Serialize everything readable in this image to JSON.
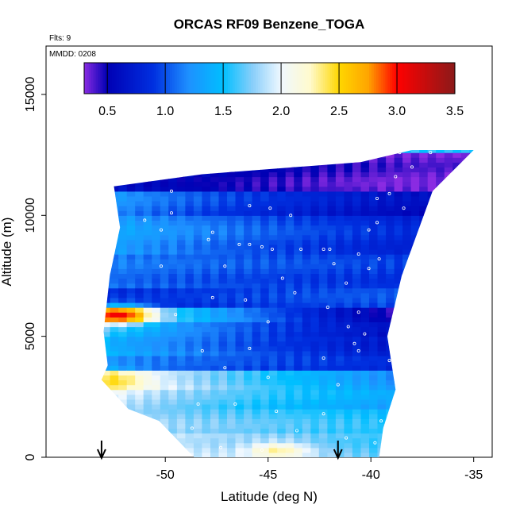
{
  "chart_data": {
    "type": "heatmap",
    "title": "ORCAS RF09 Benzene_TOGA",
    "flights_label": "Flts: 9",
    "date_label": "MMDD: 0208",
    "xlabel": "Latitude (deg N)",
    "ylabel": "Altitude (m)",
    "xlim": [
      -55.8,
      -34.1
    ],
    "ylim": [
      0,
      17000
    ],
    "x_ticks": [
      -50,
      -45,
      -40,
      -35
    ],
    "x_tick_labels": [
      "-50",
      "-45",
      "-40",
      "-35"
    ],
    "y_ticks": [
      0,
      5000,
      10000,
      15000
    ],
    "y_tick_labels": [
      "0",
      "5000",
      "10000",
      "15000"
    ],
    "colorbar": {
      "range": [
        0.3,
        3.5
      ],
      "ticks": [
        0.5,
        1.0,
        1.5,
        2.0,
        2.5,
        3.0,
        3.5
      ],
      "tick_labels": [
        "0.5",
        "1.0",
        "1.5",
        "2.0",
        "2.5",
        "3.0",
        "3.5"
      ],
      "stops": [
        {
          "value": 0.3,
          "color": "#8a2be2"
        },
        {
          "value": 0.5,
          "color": "#0000b4"
        },
        {
          "value": 0.9,
          "color": "#0030e0"
        },
        {
          "value": 1.2,
          "color": "#1e90ff"
        },
        {
          "value": 1.5,
          "color": "#00bfff"
        },
        {
          "value": 1.75,
          "color": "#87cefa"
        },
        {
          "value": 2.0,
          "color": "#f0f8ff"
        },
        {
          "value": 2.25,
          "color": "#fffacd"
        },
        {
          "value": 2.5,
          "color": "#ffd700"
        },
        {
          "value": 2.75,
          "color": "#ffa500"
        },
        {
          "value": 3.0,
          "color": "#ff0000"
        },
        {
          "value": 3.5,
          "color": "#8b1a1a"
        }
      ]
    },
    "domain_outline": [
      [
        -52.5,
        11200
      ],
      [
        -48.2,
        11700
      ],
      [
        -40.5,
        12200
      ],
      [
        -38.0,
        12700
      ],
      [
        -35.0,
        12700
      ],
      [
        -37.0,
        11000
      ],
      [
        -38.5,
        7500
      ],
      [
        -39.2,
        5000
      ],
      [
        -38.8,
        2800
      ],
      [
        -39.4,
        1200
      ],
      [
        -39.6,
        0
      ],
      [
        -48.6,
        0
      ],
      [
        -50.3,
        1500
      ],
      [
        -51.8,
        2000
      ],
      [
        -53.1,
        3200
      ],
      [
        -52.8,
        3800
      ],
      [
        -53.0,
        5200
      ],
      [
        -52.7,
        7500
      ],
      [
        -52.2,
        9500
      ],
      [
        -52.5,
        11200
      ]
    ],
    "layers": [
      {
        "alt_min": 11000,
        "alt_max": 12700,
        "west_value": 0.7,
        "east_value": 0.35
      },
      {
        "alt_min": 10000,
        "alt_max": 11000,
        "west_value": 1.3,
        "east_value": 0.6
      },
      {
        "alt_min": 8500,
        "alt_max": 10000,
        "west_value": 1.4,
        "east_value": 0.8
      },
      {
        "alt_min": 7000,
        "alt_max": 8500,
        "west_value": 1.15,
        "east_value": 0.9
      },
      {
        "alt_min": 6200,
        "alt_max": 7000,
        "west_value": 0.8,
        "east_value": 1.0
      },
      {
        "alt_min": 5700,
        "alt_max": 6200,
        "west_value": 2.3,
        "east_value": 0.4
      },
      {
        "alt_min": 5000,
        "alt_max": 5700,
        "west_value": 1.6,
        "east_value": 0.55
      },
      {
        "alt_min": 4300,
        "alt_max": 5000,
        "west_value": 1.5,
        "east_value": 0.7
      },
      {
        "alt_min": 3700,
        "alt_max": 4300,
        "west_value": 1.2,
        "east_value": 0.8
      },
      {
        "alt_min": 2900,
        "alt_max": 3700,
        "west_value": 2.3,
        "east_value": 1.2
      },
      {
        "alt_min": 2000,
        "alt_max": 2900,
        "west_value": 2.0,
        "east_value": 1.3
      },
      {
        "alt_min": 1000,
        "alt_max": 2000,
        "west_value": 1.9,
        "east_value": 1.5
      },
      {
        "alt_min": 0,
        "alt_max": 1000,
        "west_value": 2.1,
        "east_value": 1.6
      }
    ],
    "hotspots": [
      {
        "lat": -52.3,
        "alt": 5900,
        "value": 3.1
      },
      {
        "lat": -52.6,
        "alt": 3200,
        "value": 2.5
      },
      {
        "lat": -44.5,
        "alt": 300,
        "value": 2.3
      }
    ],
    "sample_points": [
      [
        -51.1,
        11500
      ],
      [
        -49.7,
        11000
      ],
      [
        -45.9,
        10400
      ],
      [
        -44.9,
        10300
      ],
      [
        -43.9,
        10000
      ],
      [
        -49.7,
        10100
      ],
      [
        -51.0,
        9800
      ],
      [
        -50.2,
        9400
      ],
      [
        -47.7,
        9300
      ],
      [
        -47.9,
        9000
      ],
      [
        -46.4,
        8800
      ],
      [
        -45.9,
        8800
      ],
      [
        -45.3,
        8700
      ],
      [
        -44.8,
        8600
      ],
      [
        -43.4,
        8600
      ],
      [
        -42.3,
        8600
      ],
      [
        -42.0,
        8600
      ],
      [
        -40.6,
        8400
      ],
      [
        -39.6,
        8200
      ],
      [
        -41.8,
        8000
      ],
      [
        -40.1,
        7800
      ],
      [
        -47.1,
        7900
      ],
      [
        -50.2,
        7900
      ],
      [
        -44.3,
        7400
      ],
      [
        -41.2,
        7200
      ],
      [
        -43.7,
        6800
      ],
      [
        -47.7,
        6600
      ],
      [
        -46.1,
        6500
      ],
      [
        -42.1,
        6200
      ],
      [
        -40.6,
        6000
      ],
      [
        -49.5,
        5900
      ],
      [
        -45.0,
        5600
      ],
      [
        -41.1,
        5400
      ],
      [
        -40.3,
        5100
      ],
      [
        -40.8,
        4700
      ],
      [
        -48.2,
        4400
      ],
      [
        -45.9,
        4500
      ],
      [
        -40.6,
        4400
      ],
      [
        -42.3,
        4100
      ],
      [
        -39.1,
        4000
      ],
      [
        -47.1,
        3700
      ],
      [
        -45.0,
        3300
      ],
      [
        -41.6,
        3000
      ],
      [
        -48.4,
        2200
      ],
      [
        -46.6,
        2200
      ],
      [
        -44.6,
        1900
      ],
      [
        -42.3,
        1800
      ],
      [
        -39.5,
        1500
      ],
      [
        -48.7,
        1200
      ],
      [
        -43.6,
        1100
      ],
      [
        -41.2,
        800
      ],
      [
        -39.8,
        600
      ],
      [
        -47.3,
        400
      ],
      [
        -45.3,
        300
      ],
      [
        -38.6,
        12600
      ],
      [
        -37.1,
        12600
      ],
      [
        -38.0,
        12000
      ],
      [
        -38.8,
        11600
      ],
      [
        -39.1,
        10900
      ],
      [
        -39.7,
        10700
      ],
      [
        -38.4,
        10300
      ],
      [
        -39.7,
        9700
      ],
      [
        -40.1,
        9400
      ]
    ],
    "arrows_lat": [
      -53.1,
      -41.6
    ],
    "grid": false
  }
}
